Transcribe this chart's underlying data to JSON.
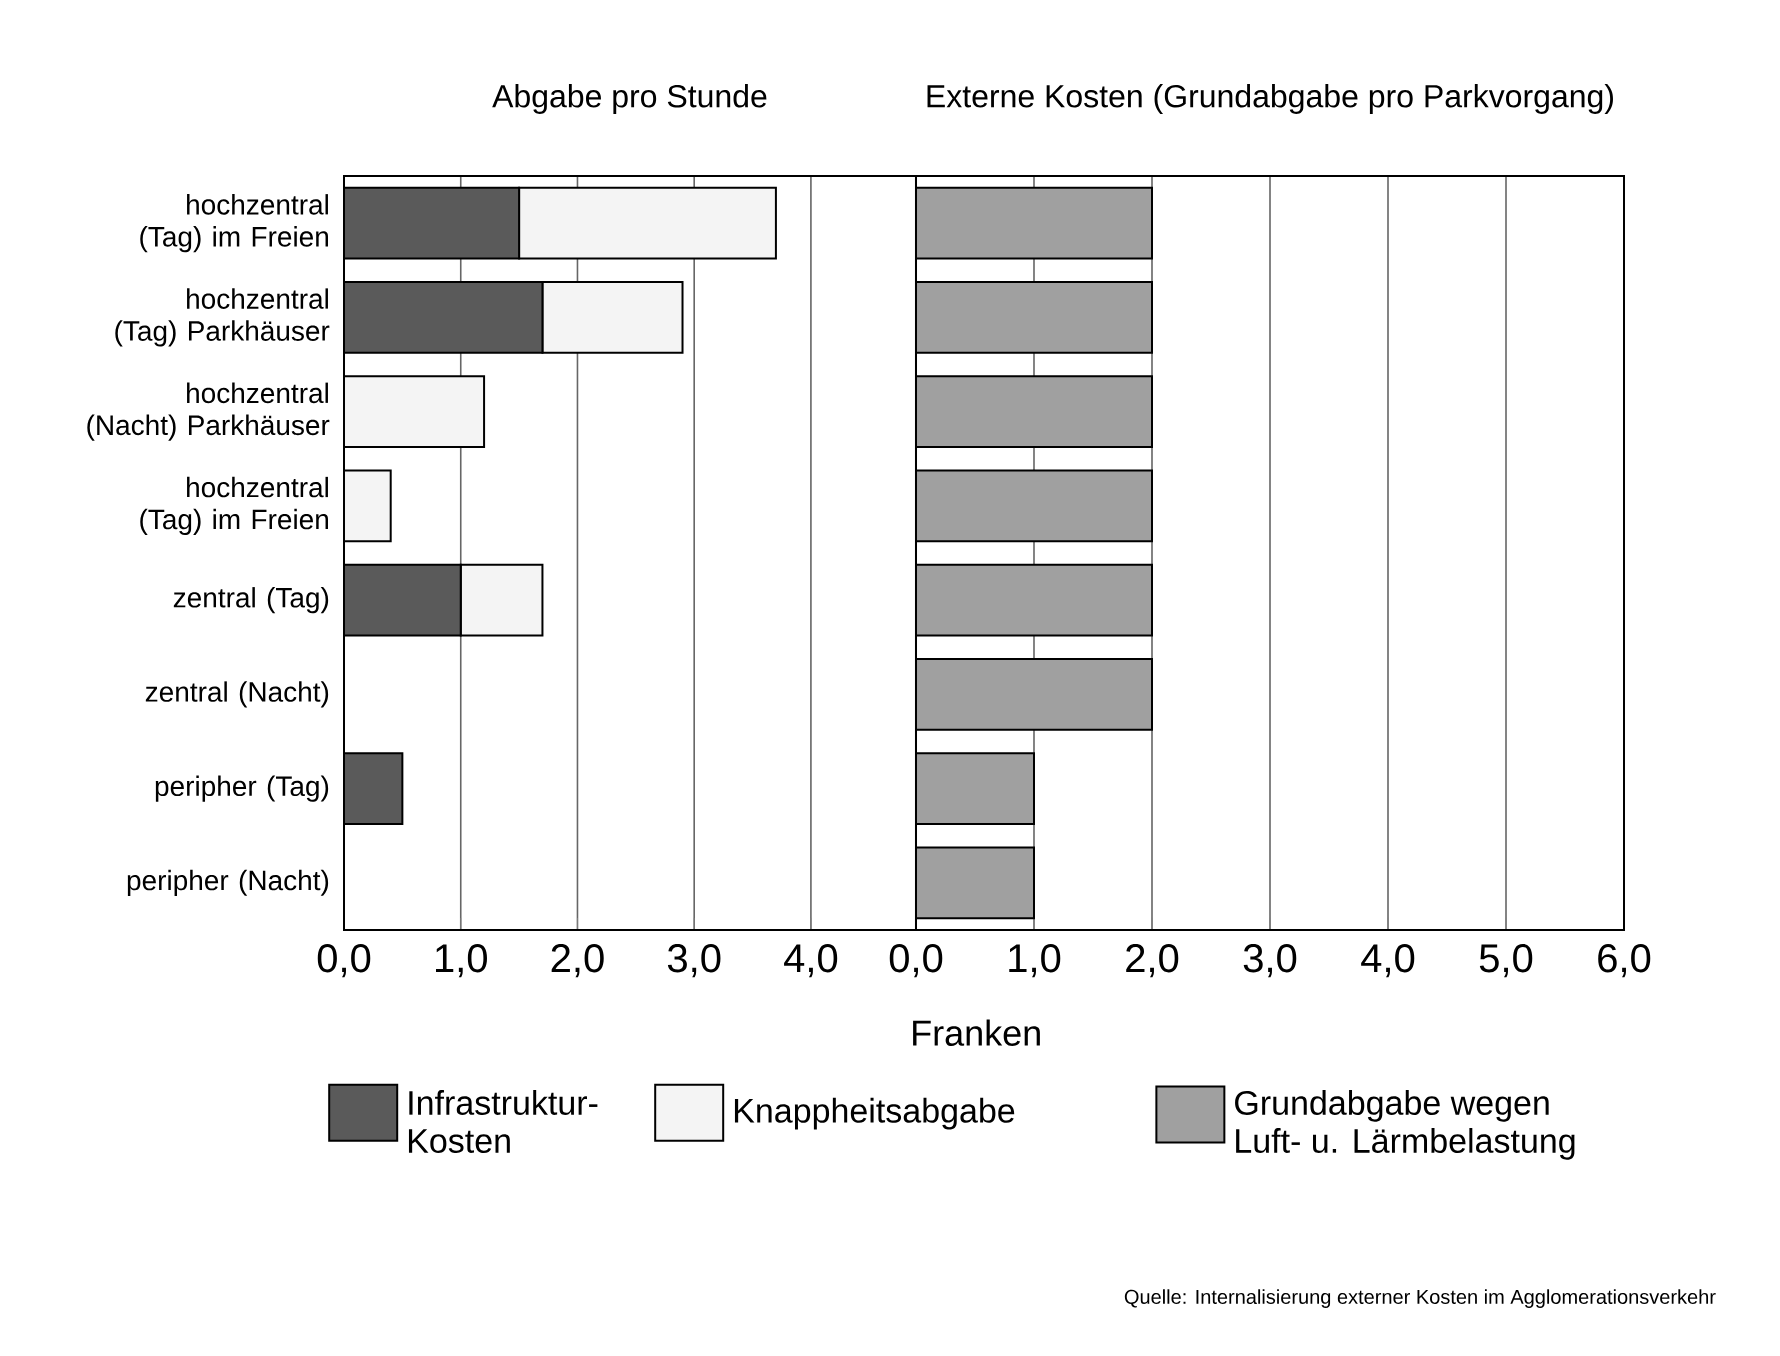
{
  "chart_data": [
    {
      "type": "bar",
      "orientation": "horizontal",
      "stacked": true,
      "title": "Abgabe pro Stunde",
      "categories": [
        "hochzentral (Tag) im Freien",
        "hochzentral (Tag) Parkhäuser",
        "hochzentral (Nacht) Parkhäuser",
        "hochzentral (Tag) im Freien",
        "zentral (Tag)",
        "zentral (Nacht)",
        "peripher (Tag)",
        "peripher (Nacht)"
      ],
      "series": [
        {
          "name": "Infrastruktur-Kosten",
          "color": "#5a5a5a",
          "values": [
            1.5,
            1.7,
            0,
            0,
            1.0,
            0,
            0.5,
            0
          ]
        },
        {
          "name": "Knappheitsabgabe",
          "color": "#f4f4f4",
          "values": [
            2.2,
            1.2,
            1.2,
            0.4,
            0.7,
            0,
            0,
            0
          ]
        }
      ],
      "xlim": [
        0,
        4.9
      ],
      "xticks": [
        {
          "value": 0,
          "label": "0,0"
        },
        {
          "value": 1,
          "label": "1,0"
        },
        {
          "value": 2,
          "label": "2,0"
        },
        {
          "value": 3,
          "label": "3,0"
        },
        {
          "value": 4,
          "label": "4,0"
        }
      ],
      "grid": "x",
      "legend": "bottom"
    },
    {
      "type": "bar",
      "orientation": "horizontal",
      "title": "Externe Kosten (Grundabgabe pro Parkvorgang)",
      "xlabel": "Franken",
      "categories": [
        null,
        null,
        null,
        null,
        null,
        null,
        null,
        null
      ],
      "series": [
        {
          "name": "Grundabgabe wegen Luft- u. Lärmbelastung",
          "color": "#a0a0a0",
          "values": [
            2.0,
            2.0,
            2.0,
            2.0,
            2.0,
            2.0,
            1.0,
            1.0
          ]
        }
      ],
      "xlim": [
        0,
        6
      ],
      "xticks": [
        {
          "value": 0,
          "label": "0,0"
        },
        {
          "value": 1,
          "label": "1,0"
        },
        {
          "value": 2,
          "label": "2,0"
        },
        {
          "value": 3,
          "label": "3,0"
        },
        {
          "value": 4,
          "label": "4,0"
        },
        {
          "value": 5,
          "label": "5,0"
        },
        {
          "value": 6,
          "label": "6,0"
        }
      ],
      "grid": "x",
      "legend": "bottom",
      "tick_labels": "x",
      "annotations": [
        "Quelle: Internalisierung externer Kosten im Agglomerationsverkehr"
      ]
    }
  ]
}
